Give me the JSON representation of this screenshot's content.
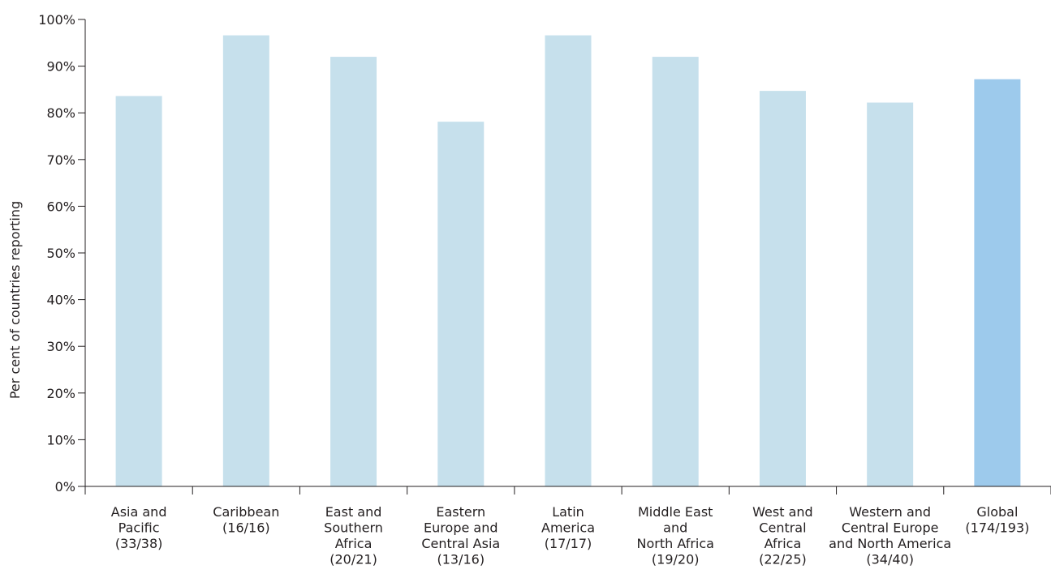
{
  "chart_data": {
    "type": "bar",
    "ylabel": "Per cent of countries reporting",
    "xlabel": "",
    "ylim": [
      0,
      100
    ],
    "yticks": [
      0,
      10,
      20,
      30,
      40,
      50,
      60,
      70,
      80,
      90,
      100
    ],
    "ytick_labels": [
      "0%",
      "10%",
      "20%",
      "30%",
      "40%",
      "50%",
      "60%",
      "70%",
      "80%",
      "90%",
      "100%"
    ],
    "categories": [
      [
        "Asia and",
        "Pacific",
        "(33/38)"
      ],
      [
        "Caribbean",
        "(16/16)"
      ],
      [
        "East and",
        "Southern",
        "Africa",
        "(20/21)"
      ],
      [
        "Eastern",
        "Europe and",
        "Central Asia",
        "(13/16)"
      ],
      [
        "Latin",
        "America",
        "(17/17)"
      ],
      [
        "Middle East",
        "and",
        "North Africa",
        "(19/20)"
      ],
      [
        "West and",
        "Central",
        "Africa",
        "(22/25)"
      ],
      [
        "Western and",
        "Central Europe",
        "and North America",
        "(34/40)"
      ],
      [
        "Global",
        "(174/193)"
      ]
    ],
    "values": [
      83.6,
      96.6,
      92.0,
      78.1,
      96.6,
      92.0,
      84.7,
      82.2,
      87.2
    ],
    "bar_colors": [
      "#c6e0ec",
      "#c6e0ec",
      "#c6e0ec",
      "#c6e0ec",
      "#c6e0ec",
      "#c6e0ec",
      "#c6e0ec",
      "#c6e0ec",
      "#9dcaec"
    ],
    "grid": false,
    "legend": "none"
  }
}
